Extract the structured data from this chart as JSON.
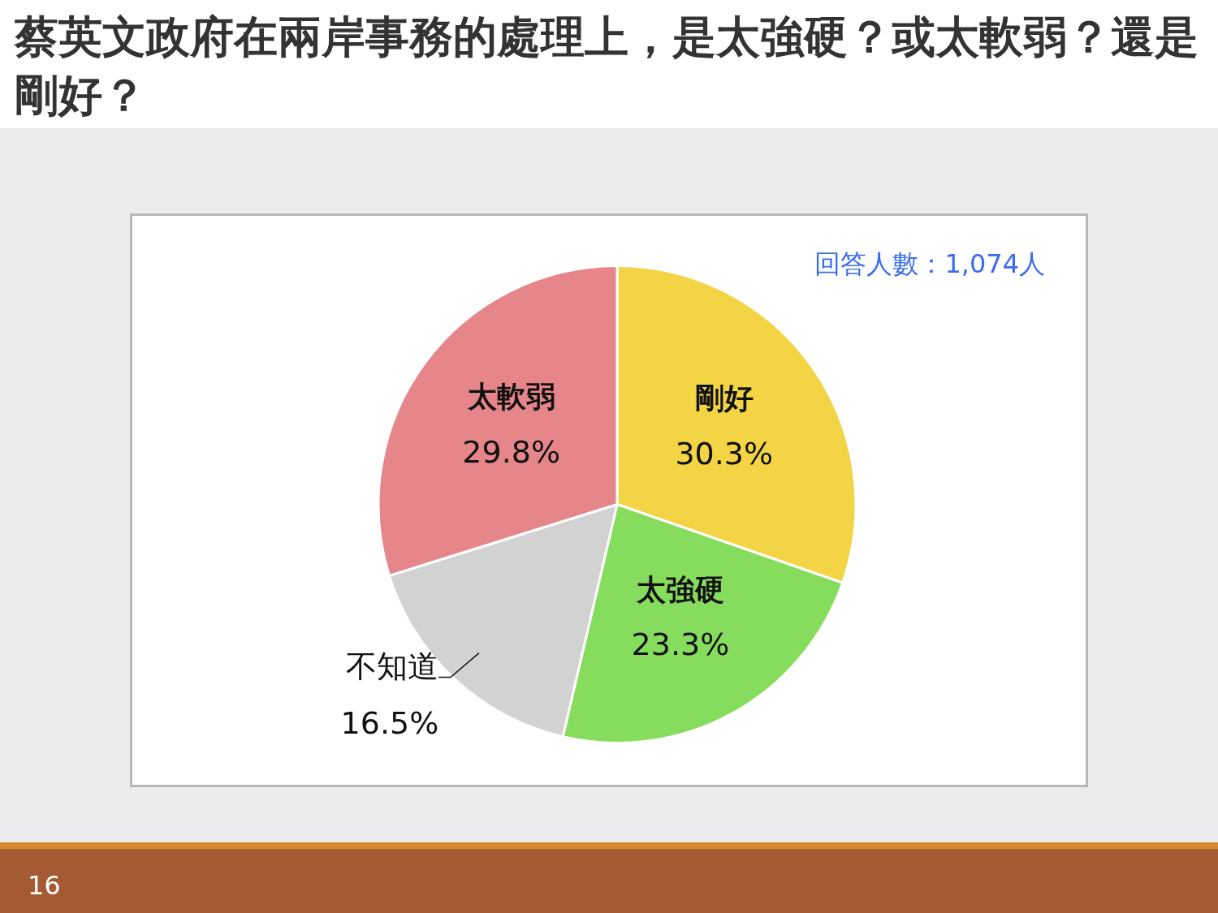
{
  "chart_data": {
    "type": "pie",
    "title": "蔡英文政府在兩岸事務的處理上，是太強硬？或太軟弱？還是剛好？",
    "categories": [
      "剛好",
      "太強硬",
      "不知道",
      "太軟弱"
    ],
    "values": [
      30.3,
      23.3,
      16.5,
      29.8
    ],
    "colors": [
      "#f2d444",
      "#86dc5c",
      "#d2d2d2",
      "#e6868a"
    ],
    "value_labels": [
      "30.3%",
      "23.3%",
      "16.5%",
      "29.8%"
    ],
    "legend": false,
    "annotations": [
      "回答人數：1,074人",
      "16"
    ]
  }
}
